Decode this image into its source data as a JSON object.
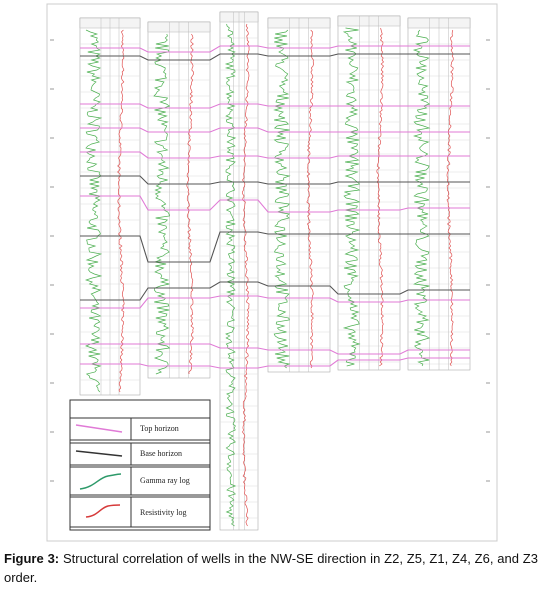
{
  "figure": {
    "legend": [
      "Top horizon",
      "Base horizon",
      "Gamma ray log",
      "Resistivity log"
    ],
    "caption": {
      "label": "Figure 3:",
      "text": "Structural correlation of wells in the NW-SE direction in Z2, Z5, Z1, Z4, Z6, and Z3 order."
    }
  }
}
